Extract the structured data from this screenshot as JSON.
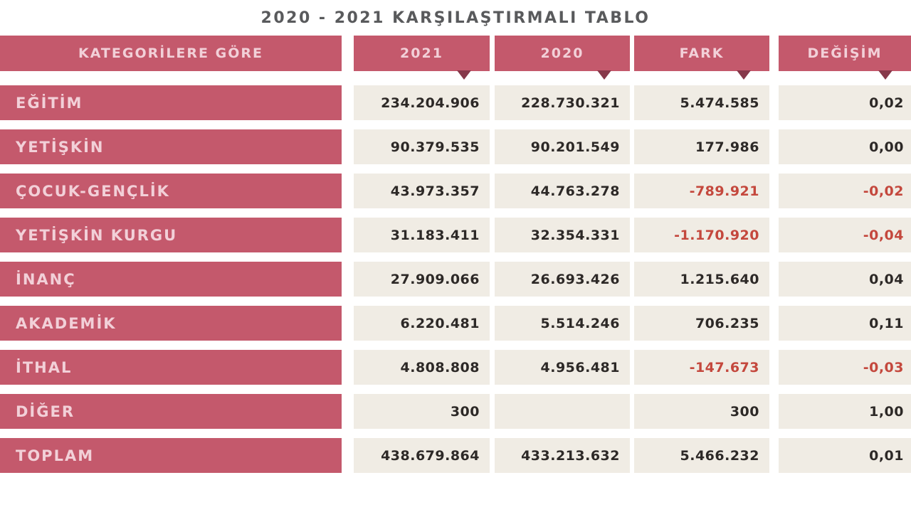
{
  "title": "2020 - 2021 KARŞILAŞTIRMALI TABLO",
  "table": {
    "headers": {
      "category": "KATEGORİLERE GÖRE",
      "col2021": "2021",
      "col2020": "2020",
      "fark": "FARK",
      "degisim": "DEĞİŞİM"
    },
    "rows": [
      {
        "category": "EĞİTİM",
        "v2021": "234.204.906",
        "v2020": "228.730.321",
        "fark": "5.474.585",
        "degisim": "0,02"
      },
      {
        "category": "YETİŞKİN",
        "v2021": "90.379.535",
        "v2020": "90.201.549",
        "fark": "177.986",
        "degisim": "0,00"
      },
      {
        "category": "ÇOCUK-GENÇLİK",
        "v2021": "43.973.357",
        "v2020": "44.763.278",
        "fark": "-789.921",
        "degisim": "-0,02"
      },
      {
        "category": "YETİŞKİN KURGU",
        "v2021": "31.183.411",
        "v2020": "32.354.331",
        "fark": "-1.170.920",
        "degisim": "-0,04"
      },
      {
        "category": "İNANÇ",
        "v2021": "27.909.066",
        "v2020": "26.693.426",
        "fark": "1.215.640",
        "degisim": "0,04"
      },
      {
        "category": "AKADEMİK",
        "v2021": "6.220.481",
        "v2020": "5.514.246",
        "fark": "706.235",
        "degisim": "0,11"
      },
      {
        "category": "İTHAL",
        "v2021": "4.808.808",
        "v2020": "4.956.481",
        "fark": "-147.673",
        "degisim": "-0,03"
      },
      {
        "category": "DİĞER",
        "v2021": "300",
        "v2020": "",
        "fark": "300",
        "degisim": "1,00"
      },
      {
        "category": "TOPLAM",
        "v2021": "438.679.864",
        "v2020": "433.213.632",
        "fark": "5.466.232",
        "degisim": "0,01"
      }
    ]
  },
  "colors": {
    "accent_pink": "#c4596c",
    "header_text_pink": "#f2d0d8",
    "cell_cream": "#f0ece4",
    "value_text": "#2d2927",
    "negative_value": "#c4483d",
    "title_text": "#595a5c",
    "pointer_dark": "#86384a"
  },
  "chart_data": {
    "type": "table",
    "title": "2020 - 2021 KARŞILAŞTIRMALI TABLO",
    "columns": [
      "KATEGORİLERE GÖRE",
      "2021",
      "2020",
      "FARK",
      "DEĞİŞİM"
    ],
    "rows": [
      [
        "EĞİTİM",
        234204906,
        228730321,
        5474585,
        0.02
      ],
      [
        "YETİŞKİN",
        90379535,
        90201549,
        177986,
        0.0
      ],
      [
        "ÇOCUK-GENÇLİK",
        43973357,
        44763278,
        -789921,
        -0.02
      ],
      [
        "YETİŞKİN KURGU",
        31183411,
        32354331,
        -1170920,
        -0.04
      ],
      [
        "İNANÇ",
        27909066,
        26693426,
        1215640,
        0.04
      ],
      [
        "AKADEMİK",
        6220481,
        5514246,
        706235,
        0.11
      ],
      [
        "İTHAL",
        4808808,
        4956481,
        -147673,
        -0.03
      ],
      [
        "DİĞER",
        300,
        null,
        300,
        1.0
      ],
      [
        "TOPLAM",
        438679864,
        433213632,
        5466232,
        0.01
      ]
    ],
    "notes": "Negative FARK and DEĞİŞİM values rendered in red; DİĞER row has no 2020 value"
  }
}
